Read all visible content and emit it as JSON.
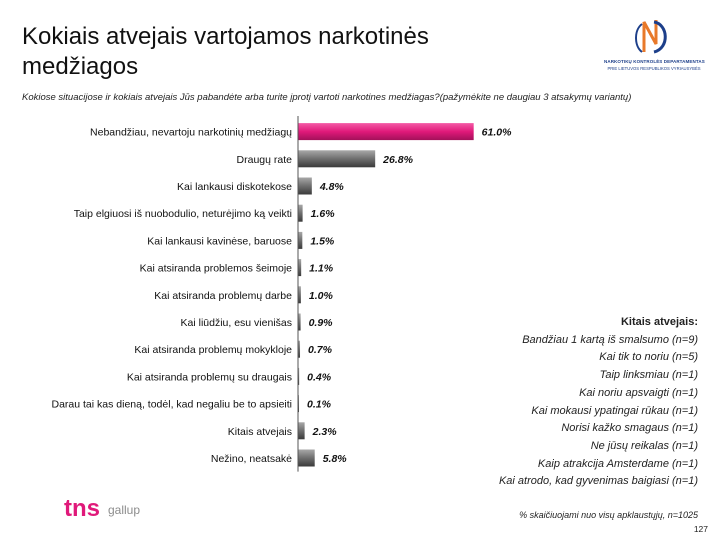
{
  "slide": {
    "title_line1": "Kokiais atvejais vartojamos narkotinės",
    "title_line2": "medžiagos",
    "question": "Kokiose situacijose ir kokiais atvejais Jūs pabandėte arba turite įprotį vartoti narkotines medžiagas?(pažymėkite ne daugiau 3 atsakymų variantų)",
    "footnote": "% skaičiuojami nuo visų apklaustųjų, n=1025",
    "page_number": "127"
  },
  "logos": {
    "ndk_line1": "NARKOTIKŲ KONTROLĖS DEPARTAMENTAS",
    "ndk_line2": "PRIE LIETUVOS RESPUBLIKOS VYRIAUSYBĖS",
    "tns_text": "tns",
    "gallup_text": "gallup"
  },
  "colors": {
    "highlight_bar": "#e0197a",
    "gray_bar": "#6e6e6e",
    "axis": "#555555",
    "ndk_blue": "#1d3f8a",
    "ndk_orange": "#e8792a",
    "tns_pink": "#e0197a",
    "gallup_gray": "#8c8c8c"
  },
  "chart_data": {
    "type": "bar",
    "orientation": "horizontal",
    "unit": "%",
    "xlim": [
      0,
      65
    ],
    "grid": false,
    "categories": [
      "Nebandžiau, nevartoju narkotinių medžiagų",
      "Draugų rate",
      "Kai lankausi diskotekose",
      "Taip elgiuosi iš nuobodulio, neturėjimo ką veikti",
      "Kai lankausi kavinėse, baruose",
      "Kai atsiranda problemos šeimoje",
      "Kai atsiranda problemų darbe",
      "Kai liūdžiu, esu vienišas",
      "Kai atsiranda problemų mokykloje",
      "Kai atsiranda problemų su draugais",
      "Darau tai kas dieną, todėl, kad negaliu be to apsieiti",
      "Kitais atvejais",
      "Nežino, neatsakė"
    ],
    "values": [
      61.0,
      26.8,
      4.8,
      1.6,
      1.5,
      1.1,
      1.0,
      0.9,
      0.7,
      0.4,
      0.1,
      2.3,
      5.8
    ],
    "value_labels": [
      "61.0%",
      "26.8%",
      "4.8%",
      "1.6%",
      "1.5%",
      "1.1%",
      "1.0%",
      "0.9%",
      "0.7%",
      "0.4%",
      "0.1%",
      "2.3%",
      "5.8%"
    ],
    "highlight_index": 0
  },
  "other_cases": {
    "heading": "Kitais atvejais:",
    "items": [
      "Bandžiau 1 kartą iš smalsumo (n=9)",
      "Kai tik to noriu (n=5)",
      "Taip linksmiau (n=1)",
      "Kai noriu apsvaigti (n=1)",
      "Kai mokausi ypatingai rūkau (n=1)",
      "Norisi kažko smagaus (n=1)",
      "Ne jūsų reikalas (n=1)",
      "Kaip atrakcija Amsterdame (n=1)",
      "Kai atrodo, kad gyvenimas baigiasi (n=1)"
    ]
  }
}
